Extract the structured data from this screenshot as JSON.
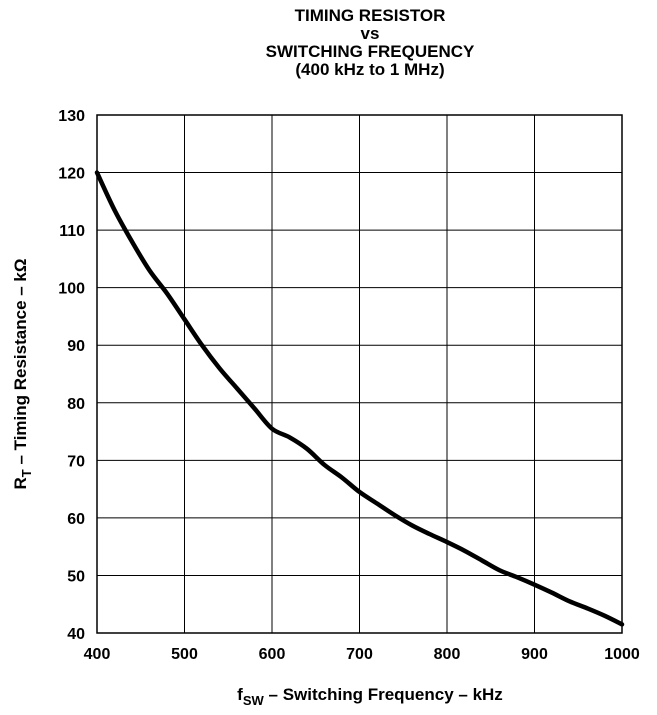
{
  "chart_data": {
    "type": "line",
    "title_lines": [
      "TIMING RESISTOR",
      "vs",
      "SWITCHING FREQUENCY",
      "(400 kHz to 1 MHz)"
    ],
    "xlabel": {
      "main": "f",
      "sub": "SW",
      "rest": " – Switching Frequency – kHz"
    },
    "ylabel": {
      "main": "R",
      "sub": "T",
      "rest": " – Timing Resistance – kΩ"
    },
    "xlim": [
      400,
      1000
    ],
    "ylim": [
      40,
      130
    ],
    "xticks": [
      400,
      500,
      600,
      700,
      800,
      900,
      1000
    ],
    "yticks": [
      40,
      50,
      60,
      70,
      80,
      90,
      100,
      110,
      120,
      130
    ],
    "grid": true,
    "series": [
      {
        "color": "#000000",
        "x": [
          400,
          420,
          440,
          460,
          480,
          500,
          520,
          540,
          560,
          580,
          600,
          620,
          640,
          660,
          680,
          700,
          720,
          740,
          760,
          780,
          800,
          820,
          840,
          860,
          880,
          900,
          920,
          940,
          960,
          980,
          1000
        ],
        "y": [
          120,
          113.5,
          108,
          103,
          99,
          94.5,
          90,
          86,
          82.5,
          79,
          75.5,
          74,
          72,
          69.2,
          67,
          64.5,
          62.5,
          60.5,
          58.7,
          57.2,
          55.8,
          54.3,
          52.6,
          50.9,
          49.7,
          48.4,
          47,
          45.5,
          44.3,
          43,
          41.5
        ]
      }
    ]
  }
}
